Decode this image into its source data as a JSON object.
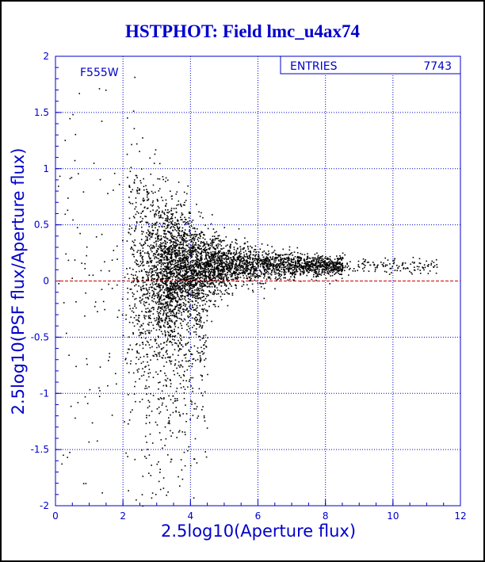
{
  "chart_data": {
    "type": "scatter",
    "title": "HSTPHOT: Field lmc_u4ax74",
    "xlabel": "2.5log10(Aperture flux)",
    "ylabel": "2.5log10(PSF flux/Aperture flux)",
    "xlim": [
      0,
      12
    ],
    "ylim": [
      -2,
      2
    ],
    "x_ticks": [
      "0",
      "2",
      "4",
      "6",
      "8",
      "10",
      "12"
    ],
    "y_ticks": [
      "-2",
      "-1.5",
      "-1",
      "-0.5",
      "0",
      "0.5",
      "1",
      "1.5",
      "2"
    ],
    "grid": true,
    "reference_line_y": 0,
    "filter_label": "F555W",
    "stats": {
      "label": "ENTRIES",
      "value": "7743"
    },
    "point_count": 7743,
    "description_of_distribution": {
      "x_range": [
        0,
        11.3
      ],
      "bright_locus_y": 0.14,
      "faint_scatter_y_range": [
        -2,
        2
      ]
    }
  },
  "colors": {
    "background": "#000000",
    "frame": "#ffffff",
    "axes_text": "#0000cc",
    "grid": "#0000cc",
    "points": "#000000",
    "reference_line": "#cc0000"
  }
}
